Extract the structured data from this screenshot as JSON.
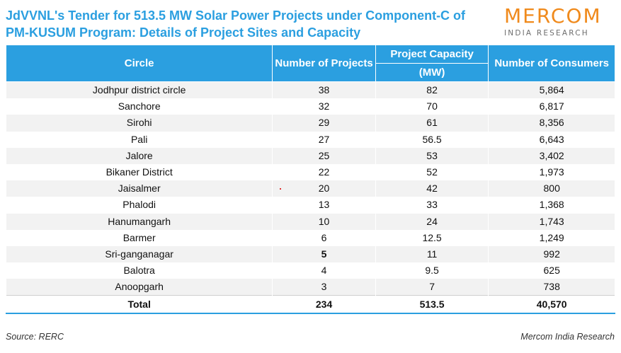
{
  "title": "JdVVNL's Tender for 513.5 MW Solar Power Projects under Component-C of PM-KUSUM Program: Details of Project Sites and Capacity",
  "logo": {
    "main": "MERCOM",
    "sub": "INDIA RESEARCH"
  },
  "table": {
    "headers": {
      "circle": "Circle",
      "projects": "Number of Projects",
      "capacity": "Project Capacity",
      "capacity_unit": "(MW)",
      "consumers": "Number of Consumers"
    },
    "rows": [
      {
        "circle": "Jodhpur district circle",
        "projects": "38",
        "capacity": "82",
        "consumers": "5,864"
      },
      {
        "circle": "Sanchore",
        "projects": "32",
        "capacity": "70",
        "consumers": "6,817"
      },
      {
        "circle": "Sirohi",
        "projects": "29",
        "capacity": "61",
        "consumers": "8,356"
      },
      {
        "circle": "Pali",
        "projects": "27",
        "capacity": "56.5",
        "consumers": "6,643"
      },
      {
        "circle": "Jalore",
        "projects": "25",
        "capacity": "53",
        "consumers": "3,402"
      },
      {
        "circle": "Bikaner District",
        "projects": "22",
        "capacity": "52",
        "consumers": "1,973"
      },
      {
        "circle": "Jaisalmer",
        "projects": "20",
        "capacity": "42",
        "consumers": "800"
      },
      {
        "circle": "Phalodi",
        "projects": "13",
        "capacity": "33",
        "consumers": "1,368"
      },
      {
        "circle": "Hanumangarh",
        "projects": "10",
        "capacity": "24",
        "consumers": "1,743"
      },
      {
        "circle": "Barmer",
        "projects": "6",
        "capacity": "12.5",
        "consumers": "1,249"
      },
      {
        "circle": "Sri-ganganagar",
        "projects": "5",
        "capacity": "11",
        "consumers": "992"
      },
      {
        "circle": "Balotra",
        "projects": "4",
        "capacity": "9.5",
        "consumers": "625"
      },
      {
        "circle": "Anoopgarh",
        "projects": "3",
        "capacity": "7",
        "consumers": "738"
      }
    ],
    "total": {
      "circle": "Total",
      "projects": "234",
      "capacity": "513.5",
      "consumers": "40,570"
    }
  },
  "source": "Source: RERC",
  "credit": "Mercom India Research",
  "colors": {
    "accent": "#2b9fe0",
    "logo": "#f08a1c",
    "stripe": "#f2f2f2"
  }
}
